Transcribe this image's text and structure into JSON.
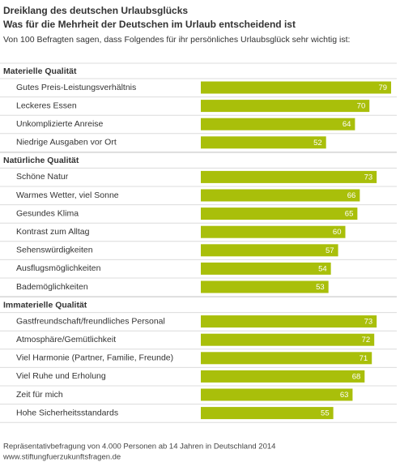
{
  "chart_data": {
    "type": "bar",
    "title": "Dreiklang des deutschen Urlaubsglücks",
    "subtitle": "Was für die Mehrheit der Deutschen im Urlaub entscheidend ist",
    "description": "Von 100 Befragten sagen, dass Folgendes für ihr persönliches Urlaubsglück sehr wichtig ist:",
    "color": "#a9bf0a",
    "groups": [
      {
        "name": "Materielle Qualität",
        "categories": [
          "Gutes Preis-Leistungsverhältnis",
          "Leckeres Essen",
          "Unkomplizierte Anreise",
          "Niedrige Ausgaben vor Ort"
        ],
        "values": [
          79,
          70,
          64,
          52
        ]
      },
      {
        "name": "Natürliche Qualität",
        "categories": [
          "Schöne Natur",
          "Warmes Wetter, viel Sonne",
          "Gesundes Klima",
          "Kontrast zum Alltag",
          "Sehenswürdigkeiten",
          "Ausflugsmöglichkeiten",
          "Bademöglichkeiten"
        ],
        "values": [
          73,
          66,
          65,
          60,
          57,
          54,
          53
        ]
      },
      {
        "name": "Immaterielle Qualität",
        "categories": [
          "Gastfreundschaft/freundliches Personal",
          "Atmosphäre/Gemütlichkeit",
          "Viel Harmonie (Partner, Familie, Freunde)",
          "Viel Ruhe und Erholung",
          "Zeit für mich",
          "Hohe Sicherheitsstandards"
        ],
        "values": [
          73,
          72,
          71,
          68,
          63,
          55
        ]
      }
    ],
    "note": "Repräsentativbefragung von 4.000 Personen ab 14 Jahren in Deutschland 2014",
    "source": "www.stiftungfuerzukunftsfragen.de"
  }
}
